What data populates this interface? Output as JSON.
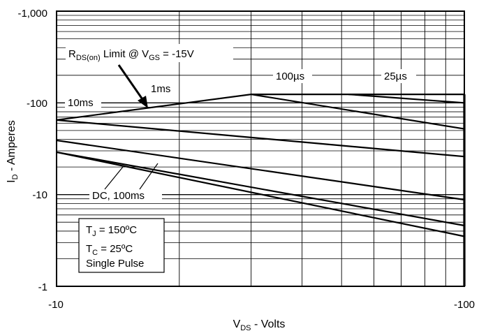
{
  "chart_data": {
    "type": "line",
    "xlabel": {
      "main": "V",
      "sub": "DS",
      "rest": " - Volts"
    },
    "ylabel": {
      "main": "I",
      "sub": "D",
      "rest": " - Amperes"
    },
    "xscale": "log",
    "yscale": "log",
    "xlim": [
      -10,
      -100
    ],
    "ylim": [
      -1,
      -1000
    ],
    "x_ticks": [
      "-10",
      "-100"
    ],
    "y_ticks": [
      "-1",
      "-10",
      "-100",
      "-1,000"
    ],
    "grid": true,
    "limit_line": {
      "label": {
        "main": "R",
        "sub": "DS(on)",
        "mid": " Limit @ V",
        "sub2": "GS",
        "rest": " = -15V"
      },
      "x": [
        -10,
        -30,
        -100
      ],
      "y": [
        -65,
        -124,
        -124
      ]
    },
    "series": [
      {
        "name": "25µs",
        "x": [
          -52,
          -100
        ],
        "y": [
          -124,
          -100
        ]
      },
      {
        "name": "100µs",
        "x": [
          -30,
          -100
        ],
        "y": [
          -124,
          -52
        ]
      },
      {
        "name": "1ms",
        "x": [
          -10,
          -100
        ],
        "y": [
          -65,
          -26
        ]
      },
      {
        "name": "10ms",
        "x": [
          -10,
          -100
        ],
        "y": [
          -39,
          -8.8
        ]
      },
      {
        "name": "DC, 100ms",
        "x": [
          -10,
          -100
        ],
        "y": [
          -29,
          -4.6
        ]
      },
      {
        "name": "",
        "x": [
          -10,
          -100
        ],
        "y": [
          -29,
          -3.5
        ]
      }
    ],
    "series_labels": {
      "dc": "DC, 100ms",
      "ms10": "10ms",
      "ms1": "1ms",
      "us100": "100µs",
      "us25": "25µs"
    },
    "conditions": {
      "tj": {
        "main": "T",
        "sub": "J",
        "rest": " = 150ºC"
      },
      "tc": {
        "main": "T",
        "sub": "C",
        "rest": " = 25ºC"
      },
      "pulse": "Single Pulse"
    }
  }
}
